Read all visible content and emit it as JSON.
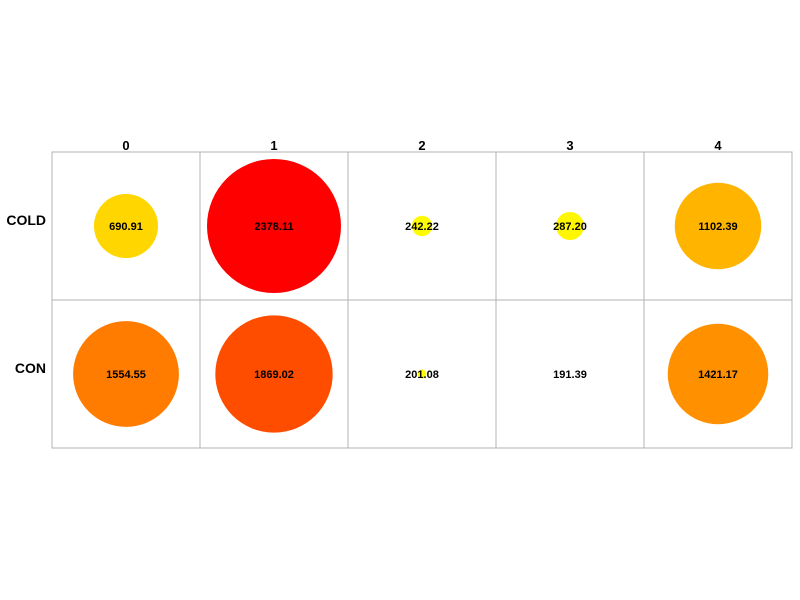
{
  "chart_data": {
    "type": "heatmap",
    "title": "",
    "xlabel": "",
    "ylabel": "",
    "columns": [
      "0",
      "1",
      "2",
      "3",
      "4"
    ],
    "rows": [
      "COLD",
      "CON"
    ],
    "values": [
      [
        690.91,
        2378.11,
        242.22,
        287.2,
        1102.39
      ],
      [
        1554.55,
        1869.02,
        201.08,
        191.39,
        1421.17
      ]
    ],
    "value_labels": [
      [
        "690.91",
        "2378.11",
        "242.22",
        "287.20",
        "1102.39"
      ],
      [
        "1554.55",
        "1869.02",
        "201.08",
        "191.39",
        "1421.17"
      ]
    ],
    "color_scale": {
      "low": "#ffff00",
      "mid": "#ffa500",
      "high": "#ff0000"
    },
    "grid": true,
    "legend": "none"
  }
}
